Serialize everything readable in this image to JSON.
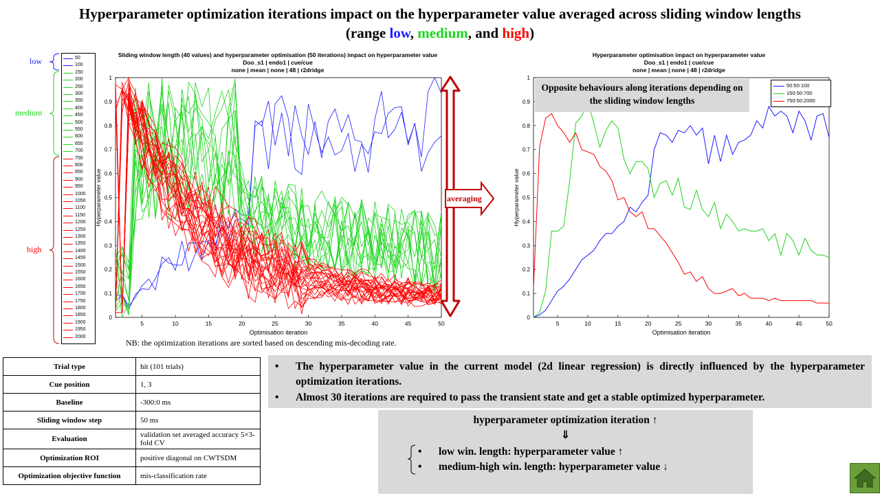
{
  "title": {
    "part1": "Hyperparameter optimization iterations impact on the hyperparameter value averaged across sliding window lengths",
    "part2_open": "(range ",
    "low": "low",
    "sep1": ", ",
    "medium": "medium",
    "sep2": ", and ",
    "high": "high",
    "part2_close": ")"
  },
  "brace_labels": {
    "low": "low",
    "medium": "medium",
    "high": "high"
  },
  "legend": [
    "50",
    "100",
    "150",
    "200",
    "250",
    "300",
    "350",
    "400",
    "450",
    "500",
    "550",
    "600",
    "650",
    "700",
    "750",
    "800",
    "850",
    "900",
    "950",
    "1000",
    "1050",
    "1100",
    "1150",
    "1200",
    "1250",
    "1300",
    "1350",
    "1400",
    "1450",
    "1500",
    "1550",
    "1600",
    "1650",
    "1700",
    "1750",
    "1800",
    "1850",
    "1900",
    "1950",
    "2000"
  ],
  "colors": {
    "low": "#1a1aff",
    "medium": "#1ed41e",
    "high": "#ff0000",
    "arrow": "#c00000",
    "panel": "#d9d9d9",
    "home": "#6b9f3a"
  },
  "averaging_label": "averaging",
  "note": "NB: the optimization iterations are sorted based on descending mis-decoding rate.",
  "params": [
    {
      "key": "Trial type",
      "value": "hit (101  trials)"
    },
    {
      "key": "Cue position",
      "value": "1, 3"
    },
    {
      "key": "Baseline",
      "value": "-300:0  ms"
    },
    {
      "key": "Sliding window   step",
      "value": "50  ms"
    },
    {
      "key": "Evaluation",
      "value": "validation set averaged accuracy 5×3-fold  CV"
    },
    {
      "key": "Optimization   ROI",
      "value": "positive diagonal on CWTSDM"
    },
    {
      "key": "Optimization   objective  function",
      "value": "mis-classification rate"
    }
  ],
  "bullets": [
    "The hyperparameter value in the current model (2d linear regression) is directly influenced by the hyperparameter optimization iterations.",
    "Almost 30 iterations are required to pass the transient state and get a stable optimized hyperparameter."
  ],
  "summary": {
    "line1": "hyperparameter optimization iteration ↑",
    "arrow": "⇓",
    "item1": "low win. length: hyperparameter value ↑",
    "item2": "medium-high win. length: hyperparameter value ↓"
  },
  "chart_data": [
    {
      "type": "line",
      "title": "Sliding window length (40 values) and hyperparameter optimisation (50 iterations) impact on hyperparameter value",
      "subtitle1": "Doo_s1 | endo1 | cue/cue",
      "subtitle2": "none | mean | none | 48 | r2dridge",
      "xlabel": "Optimisation iteration",
      "ylabel": "Hyperparameter value",
      "xlim": [
        1,
        50
      ],
      "ylim": [
        0,
        1
      ],
      "xticks": [
        5,
        10,
        15,
        20,
        25,
        30,
        35,
        40,
        45,
        50
      ],
      "yticks": [
        0,
        0.1,
        0.2,
        0.3,
        0.4,
        0.5,
        0.6,
        0.7,
        0.8,
        0.9,
        1
      ],
      "series_count": 40,
      "series_groups": [
        {
          "range": "low",
          "count": 2
        },
        {
          "range": "medium",
          "count": 12
        },
        {
          "range": "high",
          "count": 26
        }
      ],
      "series_note": "individual series approximated"
    },
    {
      "type": "line",
      "title": "Hyperparameter optimisation impact on hyperparameter value",
      "subtitle1": "Doo_s1 | endo1 | cue/cue",
      "subtitle2": "none | mean | none | 48 | r2dridge",
      "xlabel": "Optimisation iteration",
      "ylabel": "Hyperparameter value",
      "xlim": [
        1,
        50
      ],
      "ylim": [
        0,
        1
      ],
      "xticks": [
        5,
        10,
        15,
        20,
        25,
        30,
        35,
        40,
        45,
        50
      ],
      "yticks": [
        0,
        0.1,
        0.2,
        0.3,
        0.4,
        0.5,
        0.6,
        0.7,
        0.8,
        0.9,
        1
      ],
      "legend_position": "top-right",
      "annotation": "Opposite behaviours  along iterations depending  on the sliding window  lengths",
      "x": [
        1,
        2,
        3,
        4,
        5,
        6,
        7,
        8,
        9,
        10,
        11,
        12,
        13,
        14,
        15,
        16,
        17,
        18,
        19,
        20,
        21,
        22,
        23,
        24,
        25,
        26,
        27,
        28,
        29,
        30,
        31,
        32,
        33,
        34,
        35,
        36,
        37,
        38,
        39,
        40,
        41,
        42,
        43,
        44,
        45,
        46,
        47,
        48,
        49,
        50
      ],
      "series": [
        {
          "name": "50:50:100",
          "color": "#1a1aff",
          "values": [
            0.0,
            0.01,
            0.03,
            0.07,
            0.11,
            0.13,
            0.16,
            0.2,
            0.24,
            0.26,
            0.28,
            0.32,
            0.35,
            0.35,
            0.38,
            0.4,
            0.46,
            0.44,
            0.48,
            0.51,
            0.7,
            0.77,
            0.76,
            0.73,
            0.78,
            0.77,
            0.8,
            0.76,
            0.79,
            0.64,
            0.76,
            0.65,
            0.76,
            0.68,
            0.73,
            0.74,
            0.76,
            0.82,
            0.79,
            0.88,
            0.84,
            0.86,
            0.84,
            0.77,
            0.86,
            0.82,
            0.74,
            0.84,
            0.85,
            0.75
          ]
        },
        {
          "name": "150:50:700",
          "color": "#1ed41e",
          "values": [
            0.0,
            0.02,
            0.11,
            0.36,
            0.36,
            0.38,
            0.57,
            0.81,
            0.84,
            0.9,
            0.81,
            0.71,
            0.78,
            0.82,
            0.79,
            0.66,
            0.6,
            0.65,
            0.65,
            0.62,
            0.5,
            0.56,
            0.57,
            0.51,
            0.58,
            0.46,
            0.45,
            0.53,
            0.45,
            0.42,
            0.48,
            0.37,
            0.43,
            0.4,
            0.36,
            0.37,
            0.36,
            0.36,
            0.37,
            0.32,
            0.35,
            0.26,
            0.35,
            0.32,
            0.26,
            0.33,
            0.28,
            0.26,
            0.26,
            0.25
          ]
        },
        {
          "name": "750:50:2000",
          "color": "#ff0000",
          "values": [
            0.12,
            0.71,
            0.83,
            0.85,
            0.8,
            0.77,
            0.73,
            0.77,
            0.7,
            0.69,
            0.68,
            0.63,
            0.61,
            0.57,
            0.49,
            0.5,
            0.44,
            0.42,
            0.44,
            0.37,
            0.37,
            0.34,
            0.31,
            0.27,
            0.23,
            0.18,
            0.19,
            0.15,
            0.17,
            0.12,
            0.1,
            0.1,
            0.11,
            0.12,
            0.09,
            0.1,
            0.08,
            0.08,
            0.08,
            0.07,
            0.08,
            0.07,
            0.07,
            0.07,
            0.07,
            0.07,
            0.07,
            0.06,
            0.06,
            0.06
          ]
        }
      ]
    }
  ]
}
